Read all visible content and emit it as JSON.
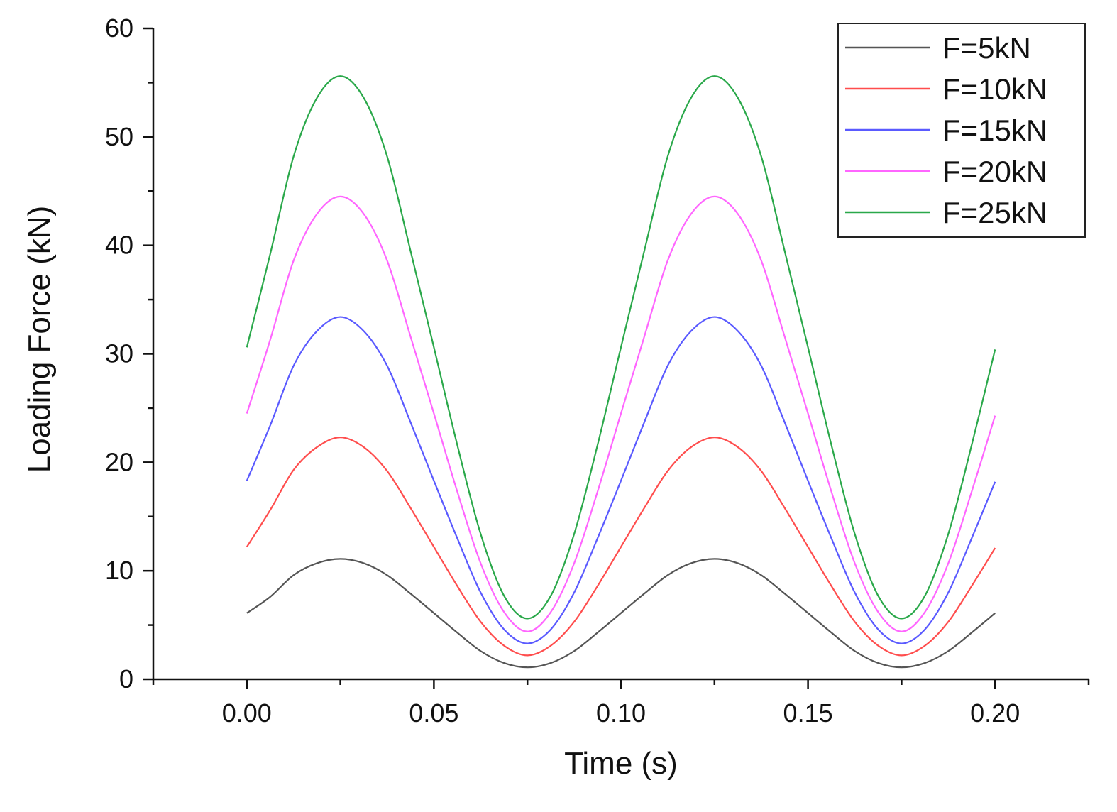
{
  "chart_data": {
    "type": "line",
    "title": "",
    "xlabel": "Time (s)",
    "ylabel": "Loading Force (kN)",
    "xlim": [
      -0.025,
      0.225
    ],
    "ylim": [
      0,
      60
    ],
    "x_ticks": [
      "0.00",
      "0.05",
      "0.10",
      "0.15",
      "0.20"
    ],
    "y_ticks": [
      "0",
      "10",
      "20",
      "30",
      "40",
      "50",
      "60"
    ],
    "legend_position": "top-right",
    "grid": false,
    "x": [
      0.0,
      0.00625,
      0.0125,
      0.01875,
      0.025,
      0.03125,
      0.0375,
      0.04375,
      0.05,
      0.05625,
      0.0625,
      0.06875,
      0.075,
      0.08125,
      0.0875,
      0.09375,
      0.1,
      0.10625,
      0.1125,
      0.11875,
      0.125,
      0.13125,
      0.1375,
      0.14375,
      0.15,
      0.15625,
      0.1625,
      0.16875,
      0.175,
      0.18125,
      0.1875,
      0.19375,
      0.2
    ],
    "series": [
      {
        "name": "F=5kN",
        "color": "#555555",
        "values": [
          6.1,
          7.6,
          9.6,
          10.7,
          11.1,
          10.7,
          9.6,
          7.9,
          6.1,
          4.3,
          2.6,
          1.5,
          1.1,
          1.5,
          2.6,
          4.3,
          6.1,
          7.9,
          9.6,
          10.7,
          11.1,
          10.7,
          9.6,
          7.9,
          6.1,
          4.3,
          2.6,
          1.5,
          1.1,
          1.5,
          2.6,
          4.3,
          6.1
        ]
      },
      {
        "name": "F=10kN",
        "color": "#ff4d4d",
        "values": [
          12.2,
          15.6,
          19.3,
          21.4,
          22.3,
          21.4,
          19.2,
          15.8,
          12.2,
          8.6,
          5.3,
          3.1,
          2.2,
          3.1,
          5.3,
          8.6,
          12.2,
          15.8,
          19.2,
          21.4,
          22.3,
          21.4,
          19.2,
          15.8,
          12.2,
          8.6,
          5.3,
          3.1,
          2.2,
          3.1,
          5.3,
          8.6,
          12.1
        ]
      },
      {
        "name": "F=15kN",
        "color": "#5a5aff",
        "values": [
          18.3,
          23.4,
          28.9,
          32.1,
          33.4,
          32.1,
          28.9,
          23.7,
          18.3,
          13.0,
          8.0,
          4.6,
          3.3,
          4.6,
          8.0,
          13.0,
          18.3,
          23.7,
          28.9,
          32.1,
          33.4,
          32.1,
          28.9,
          23.7,
          18.3,
          13.0,
          8.0,
          4.6,
          3.3,
          4.6,
          8.0,
          13.0,
          18.2
        ]
      },
      {
        "name": "F=20kN",
        "color": "#ff66ff",
        "values": [
          24.5,
          31.3,
          38.6,
          42.9,
          44.5,
          42.9,
          38.6,
          31.6,
          24.5,
          17.3,
          10.7,
          6.2,
          4.4,
          6.2,
          10.7,
          17.3,
          24.5,
          31.6,
          38.6,
          42.9,
          44.5,
          42.9,
          38.6,
          31.6,
          24.5,
          17.3,
          10.7,
          6.2,
          4.4,
          6.2,
          10.7,
          17.3,
          24.3
        ]
      },
      {
        "name": "F=25kN",
        "color": "#2aa84a",
        "values": [
          30.6,
          39.2,
          48.2,
          53.6,
          55.6,
          53.6,
          48.2,
          39.5,
          30.6,
          21.6,
          13.4,
          7.7,
          5.6,
          7.7,
          13.4,
          21.6,
          30.6,
          39.5,
          48.2,
          53.6,
          55.6,
          53.6,
          48.2,
          39.5,
          30.6,
          21.6,
          13.4,
          7.7,
          5.6,
          7.7,
          13.4,
          21.6,
          30.4
        ]
      }
    ]
  }
}
